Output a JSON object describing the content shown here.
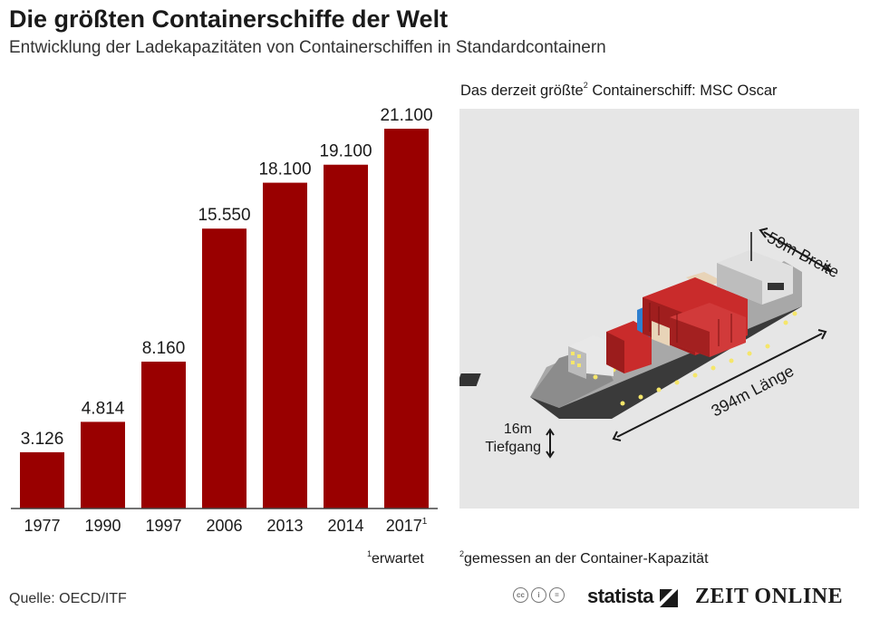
{
  "title": "Die größten Containerschiffe der Welt",
  "subtitle": "Entwicklung der Ladekapazitäten von Containerschiffen in Standardcontainern",
  "chart_data": {
    "type": "bar",
    "categories": [
      "1977",
      "1990",
      "1997",
      "2006",
      "2013",
      "2014",
      "2017"
    ],
    "values": [
      3126,
      4814,
      8160,
      15550,
      18100,
      19100,
      21100
    ],
    "data_labels": [
      "3.126",
      "4.814",
      "8.160",
      "15.550",
      "18.100",
      "19.100",
      "21.100"
    ],
    "category_superscripts": [
      "",
      "",
      "",
      "",
      "",
      "",
      "1"
    ],
    "ylim": [
      0,
      21100
    ],
    "bar_color": "#990000",
    "grid": false
  },
  "ship": {
    "title_main": "Das derzeit größte",
    "title_sup": "2",
    "title_rest": " Containerschiff: MSC Oscar",
    "width_label": "59m Breite",
    "length_label": "394m Länge",
    "draft_value": "16m",
    "draft_label": "Tiefgang"
  },
  "footnotes": {
    "f1_sup": "1",
    "f1_text": "erwartet",
    "f2_sup": "2",
    "f2_text": "gemessen an der Container-Kapazität"
  },
  "source": "Quelle: OECD/ITF",
  "branding": {
    "statista": "statista",
    "zeit": "ZEIT ONLINE"
  }
}
